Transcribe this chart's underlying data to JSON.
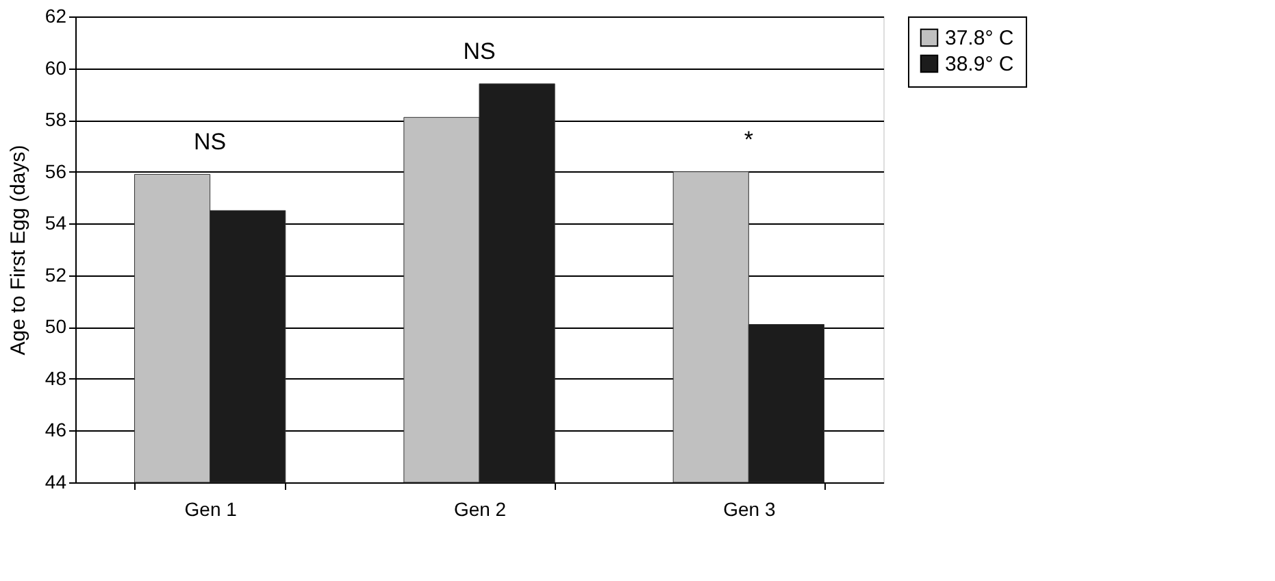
{
  "chart_data": {
    "type": "bar",
    "ylabel": "Age to First Egg (days)",
    "categories": [
      "Gen 1",
      "Gen 2",
      "Gen 3"
    ],
    "series": [
      {
        "name": "37.8° C",
        "color": "#c0c0c0",
        "values": [
          55.9,
          58.1,
          56.0
        ]
      },
      {
        "name": "38.9° C",
        "color": "#1c1c1c",
        "values": [
          54.5,
          59.4,
          50.1
        ]
      }
    ],
    "ylim": [
      44,
      62
    ],
    "yticks": [
      44,
      46,
      48,
      50,
      52,
      54,
      56,
      58,
      60,
      62
    ],
    "grid": "y",
    "legend": "right",
    "annotations": [
      "NS",
      "NS",
      "*"
    ]
  }
}
